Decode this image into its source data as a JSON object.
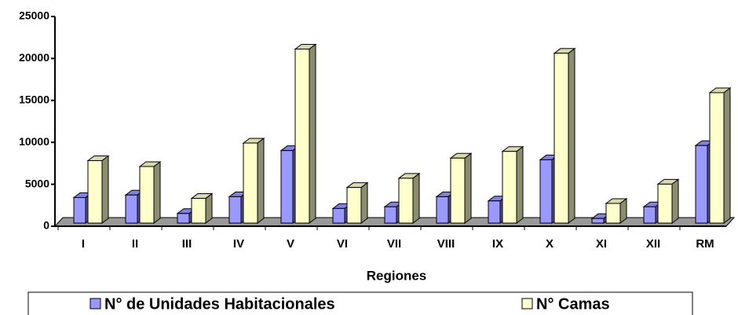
{
  "chart_data": {
    "type": "bar3d",
    "xlabel": "Regiones",
    "categories": [
      "I",
      "II",
      "III",
      "IV",
      "V",
      "VI",
      "VII",
      "VIII",
      "IX",
      "X",
      "XI",
      "XII",
      "RM"
    ],
    "series": [
      {
        "name": "N° de Unidades Habitacionales",
        "color": "#9999ff",
        "values": [
          3700,
          4000,
          1800,
          3800,
          9300,
          2400,
          2600,
          3800,
          3300,
          8200,
          1200,
          2600,
          9900
        ]
      },
      {
        "name": "N° Camas",
        "color": "#ffffcc",
        "values": [
          8100,
          7400,
          3600,
          10200,
          21400,
          4900,
          6000,
          8400,
          9200,
          20900,
          3000,
          5300,
          16200
        ]
      }
    ],
    "ylim": [
      0,
      25000
    ],
    "yticks": [
      0,
      5000,
      10000,
      15000,
      20000,
      25000
    ]
  }
}
